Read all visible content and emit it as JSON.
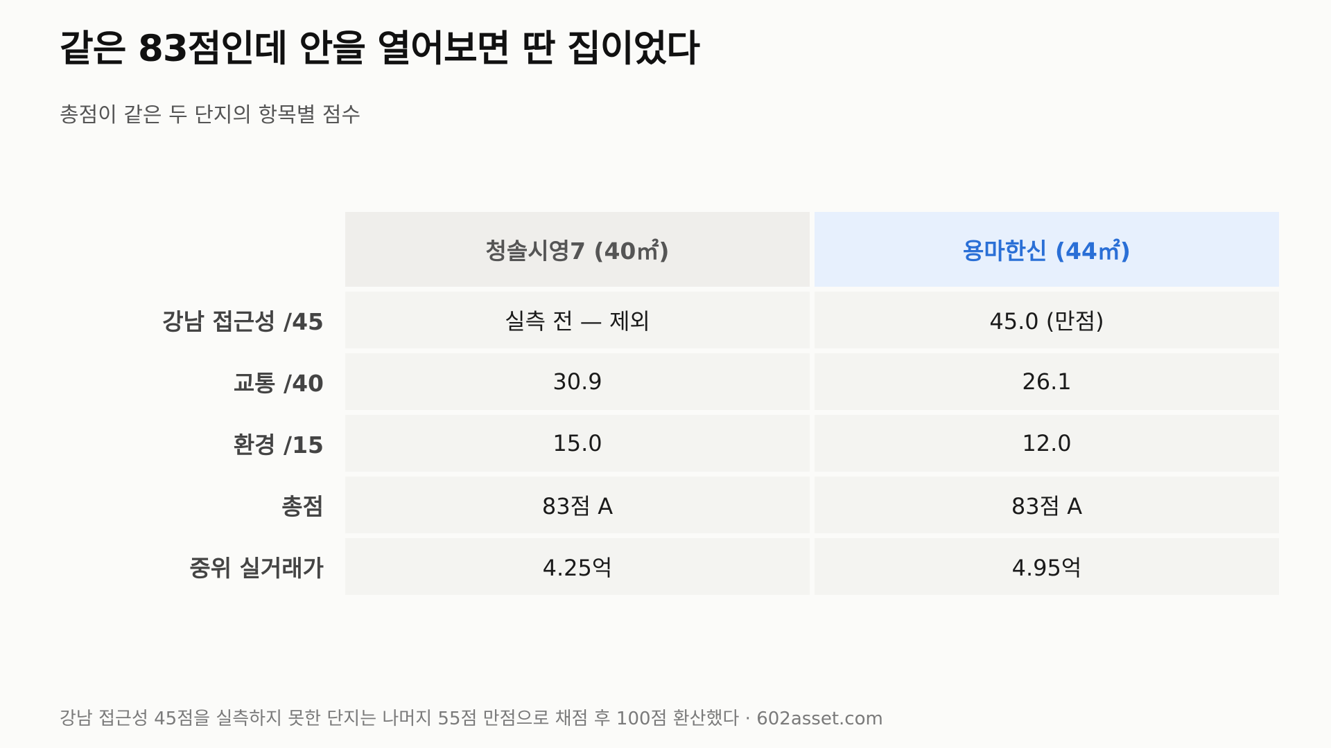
{
  "title": "같은 83점인데 안을 열어보면 딴 집이었다",
  "subtitle": "총점이 같은 두 단지의 항목별 점수",
  "footer": "강남 접근성 45점을 실측하지 못한 단지는 나머지 55점 만점으로 채점 후 100점 환산했다 · 602asset.com",
  "colors": {
    "background": "#fbfbf9",
    "header_a_bg": "#efeeeb",
    "header_a_text": "#555555",
    "header_b_bg": "#e7f0fd",
    "header_b_text": "#2a6fd6",
    "cell_bg": "#f4f4f1"
  },
  "chart_data": {
    "type": "table",
    "title": "같은 83점인데 안을 열어보면 딴 집이었다",
    "subtitle": "총점이 같은 두 단지의 항목별 점수",
    "columns": [
      "청솔시영7 (40㎡)",
      "용마한신 (44㎡)"
    ],
    "rows": [
      {
        "label": "강남 접근성 /45",
        "values": [
          "실측 전 — 제외",
          "45.0 (만점)"
        ]
      },
      {
        "label": "교통 /40",
        "values": [
          "30.9",
          "26.1"
        ]
      },
      {
        "label": "환경 /15",
        "values": [
          "15.0",
          "12.0"
        ]
      },
      {
        "label": "총점",
        "values": [
          "83점 A",
          "83점 A"
        ]
      },
      {
        "label": "중위 실거래가",
        "values": [
          "4.25억",
          "4.95억"
        ]
      }
    ],
    "highlight_column": 1
  }
}
